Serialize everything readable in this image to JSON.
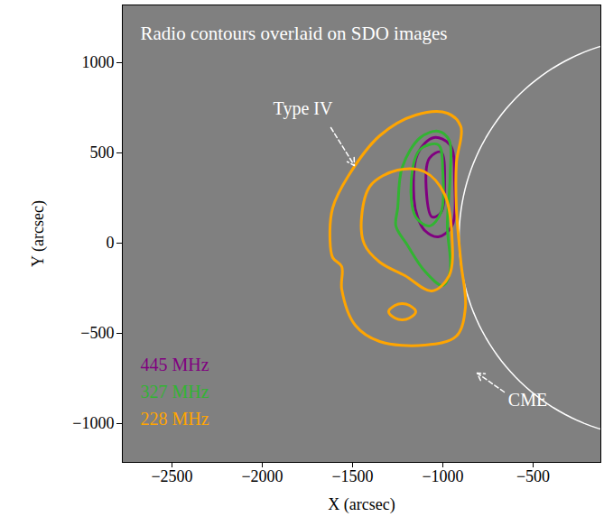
{
  "chart_data": {
    "type": "contour",
    "title": "Radio contours overlaid on SDO images",
    "xlabel": "X (arcsec)",
    "ylabel": "Y (arcsec)",
    "xlim": [
      -2775,
      -125
    ],
    "ylim": [
      -1215,
      1320
    ],
    "xticks": [
      -2500,
      -2000,
      -1500,
      -1000,
      -500
    ],
    "yticks": [
      -1000,
      -500,
      0,
      500,
      1000
    ],
    "grid": false,
    "legend": "lower left",
    "series": [
      {
        "name": "445 MHz",
        "color": "#800080",
        "contours": [
          [
            [
              -1160,
              245
            ],
            [
              -1140,
              495
            ],
            [
              -1050,
              585
            ],
            [
              -960,
              545
            ],
            [
              -935,
              345
            ],
            [
              -950,
              95
            ],
            [
              -1025,
              35
            ],
            [
              -1100,
              70
            ],
            [
              -1140,
              145
            ]
          ],
          [
            [
              -1090,
              270
            ],
            [
              -1075,
              470
            ],
            [
              -1010,
              505
            ],
            [
              -990,
              345
            ],
            [
              -1010,
              170
            ],
            [
              -1060,
              145
            ]
          ]
        ]
      },
      {
        "name": "327 MHz",
        "color": "#32b432",
        "contours": [
          [
            [
              -1250,
              195
            ],
            [
              -1225,
              420
            ],
            [
              -1125,
              585
            ],
            [
              -1025,
              620
            ],
            [
              -965,
              570
            ],
            [
              -960,
              370
            ],
            [
              -975,
              95
            ],
            [
              -960,
              -155
            ],
            [
              -1000,
              -235
            ],
            [
              -1100,
              -155
            ],
            [
              -1200,
              -5
            ],
            [
              -1260,
              95
            ]
          ],
          [
            [
              -1175,
              345
            ],
            [
              -1125,
              520
            ],
            [
              -1025,
              545
            ],
            [
              -1000,
              395
            ],
            [
              -1010,
              170
            ],
            [
              -1075,
              95
            ],
            [
              -1150,
              145
            ]
          ]
        ]
      },
      {
        "name": "228 MHz",
        "color": "#ffa500",
        "contours": [
          [
            [
              -1625,
              20
            ],
            [
              -1610,
              195
            ],
            [
              -1525,
              370
            ],
            [
              -1350,
              595
            ],
            [
              -1150,
              710
            ],
            [
              -975,
              720
            ],
            [
              -900,
              645
            ],
            [
              -925,
              445
            ],
            [
              -925,
              195
            ],
            [
              -900,
              -105
            ],
            [
              -875,
              -355
            ],
            [
              -925,
              -515
            ],
            [
              -1100,
              -565
            ],
            [
              -1350,
              -545
            ],
            [
              -1485,
              -455
            ],
            [
              -1560,
              -255
            ],
            [
              -1560,
              -130
            ],
            [
              -1610,
              -80
            ]
          ],
          [
            [
              -1450,
              145
            ],
            [
              -1400,
              320
            ],
            [
              -1250,
              405
            ],
            [
              -1100,
              395
            ],
            [
              -990,
              270
            ],
            [
              -950,
              45
            ],
            [
              -965,
              -180
            ],
            [
              -1060,
              -265
            ],
            [
              -1210,
              -180
            ],
            [
              -1350,
              -105
            ],
            [
              -1435,
              -5
            ]
          ],
          [
            [
              -1300,
              -380
            ],
            [
              -1265,
              -345
            ],
            [
              -1225,
              -335
            ],
            [
              -1185,
              -345
            ],
            [
              -1150,
              -380
            ],
            [
              -1185,
              -415
            ],
            [
              -1225,
              -425
            ],
            [
              -1265,
              -415
            ]
          ]
        ]
      }
    ],
    "limb": {
      "cx": 200,
      "cy": 30,
      "r": 1110,
      "color": "#ffffff"
    },
    "annotations": [
      {
        "text": "Type IV",
        "x": -1775,
        "y": 745,
        "arrow": [
          -1620,
          640,
          -1490,
          430
        ]
      },
      {
        "text": "CME",
        "x": -530,
        "y": -870,
        "arrow": [
          -660,
          -825,
          -810,
          -720
        ]
      }
    ]
  }
}
